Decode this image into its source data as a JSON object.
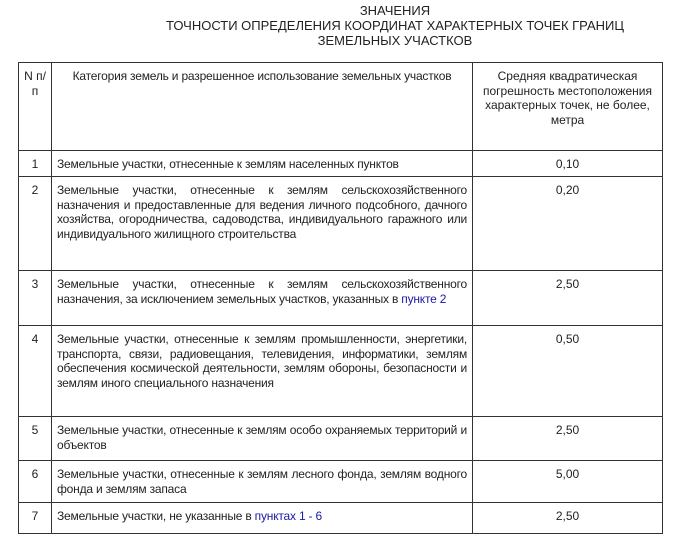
{
  "title": {
    "line1": "ЗНАЧЕНИЯ",
    "line2": "ТОЧНОСТИ ОПРЕДЕЛЕНИЯ КООРДИНАТ ХАРАКТЕРНЫХ ТОЧЕК ГРАНИЦ",
    "line3": "ЗЕМЕЛЬНЫХ УЧАСТКОВ"
  },
  "table": {
    "headers": [
      "N п/п",
      "Категория земель и разрешенное использование земельных участков",
      "Средняя квадратическая погрешность местоположения характерных точек, не более, метра"
    ],
    "rows": [
      {
        "n": "1",
        "text": "Земельные участки, отнесенные к землям населенных пунктов",
        "link": "",
        "value": "0,10"
      },
      {
        "n": "2",
        "text": "Земельные участки, отнесенные к землям сельскохозяйственного назначения и предоставленные для ведения личного подсобного, дачного хозяйства, огородничества, садоводства, индивидуального гаражного или индивидуального жилищного строительства",
        "link": "",
        "value": "0,20"
      },
      {
        "n": "3",
        "text": "Земельные участки, отнесенные к землям сельскохозяйственного назначения, за исключением земельных участков, указанных в ",
        "link": "пункте 2",
        "value": "2,50"
      },
      {
        "n": "4",
        "text": "Земельные участки, отнесенные к землям промышленности, энергетики, транспорта, связи, радиовещания, телевидения, информатики, землям обеспечения космической деятельности, землям обороны, безопасности и землям иного специального назначения",
        "link": "",
        "value": "0,50"
      },
      {
        "n": "5",
        "text": "Земельные участки, отнесенные к землям особо охраняемых территорий и объектов",
        "link": "",
        "value": "2,50"
      },
      {
        "n": "6",
        "text": "Земельные участки, отнесенные к землям лесного фонда, землям водного фонда и землям запаса",
        "link": "",
        "value": "5,00"
      },
      {
        "n": "7",
        "text": "Земельные участки, не указанные в ",
        "link": "пунктах 1 - 6",
        "value": "2,50"
      }
    ]
  },
  "colors": {
    "link": "#1a1aa8",
    "border": "#333333"
  }
}
